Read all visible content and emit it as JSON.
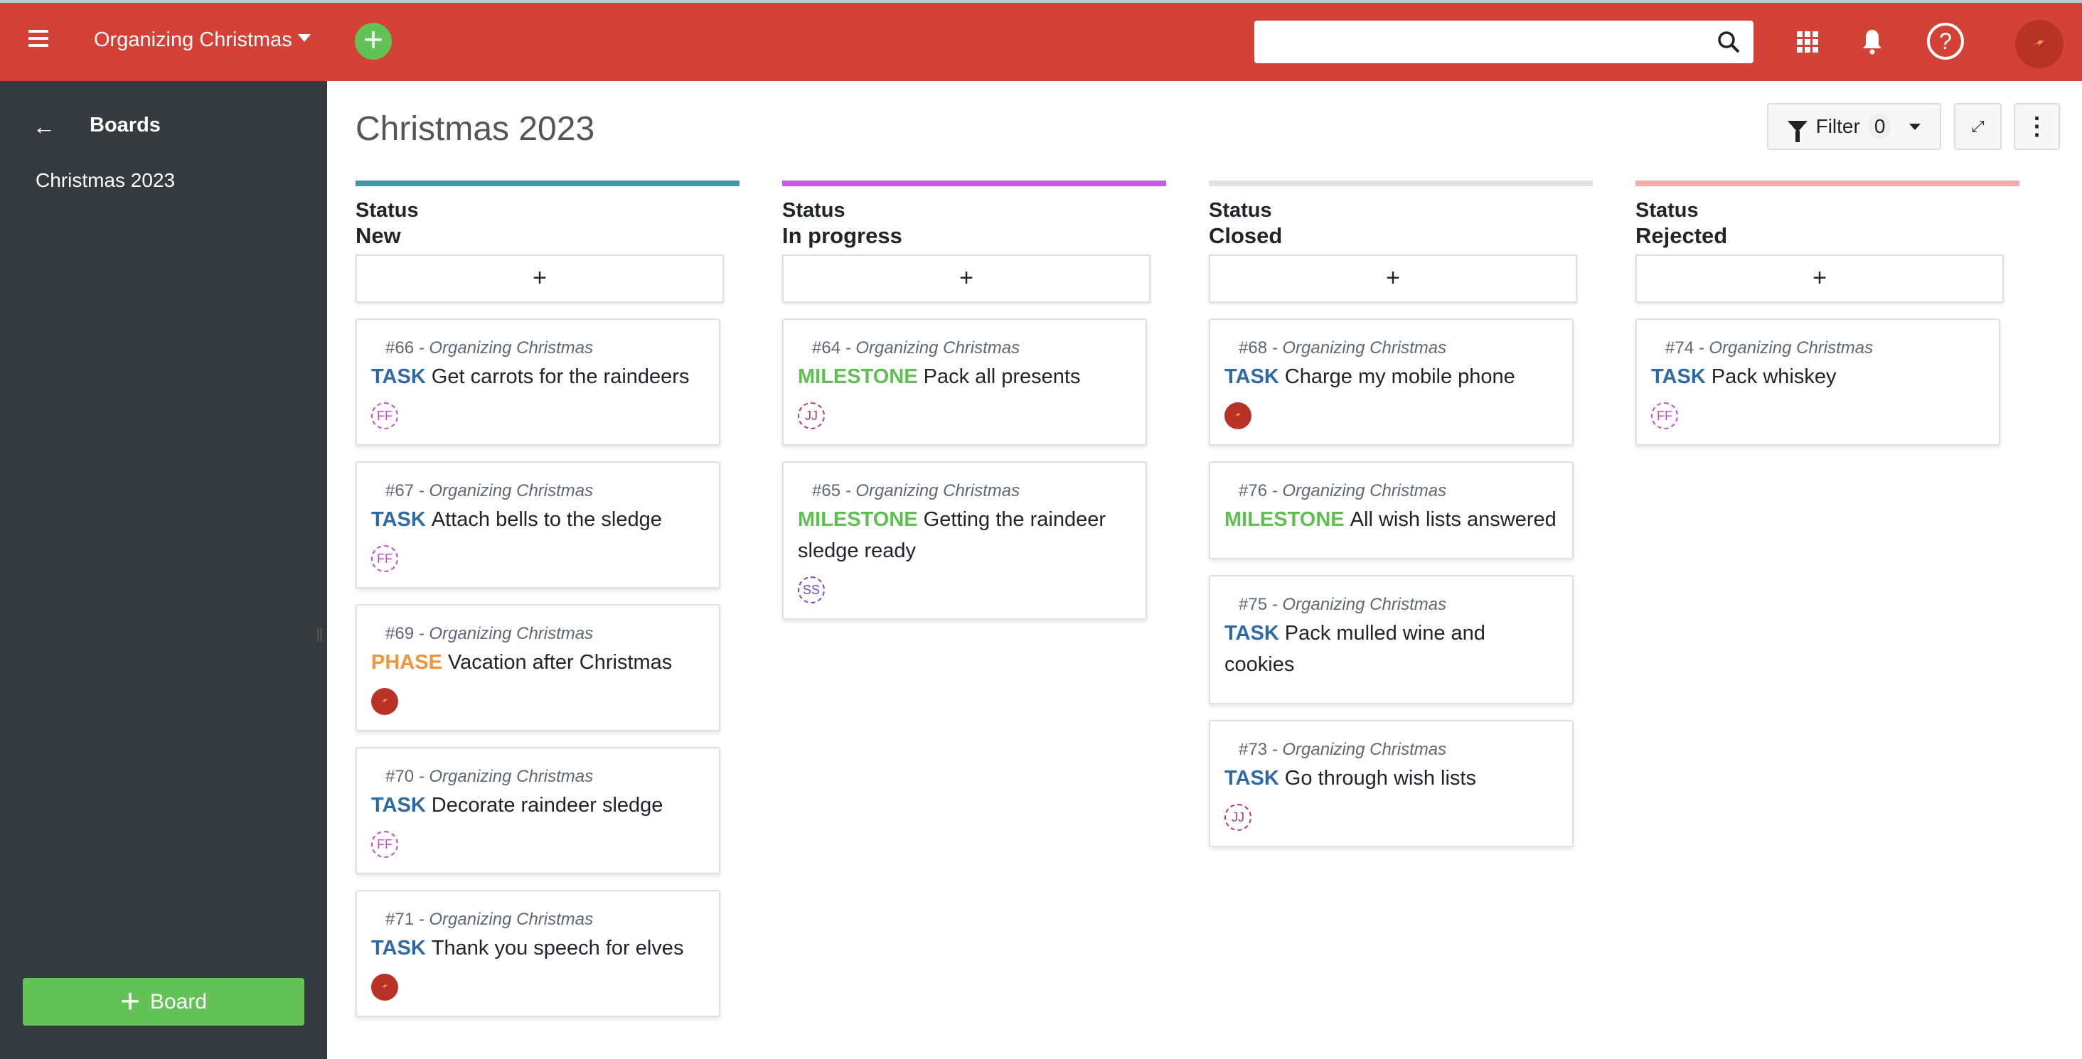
{
  "header": {
    "project": "Organizing Christmas",
    "search_placeholder": "",
    "user_avatar": "santa-sleigh"
  },
  "colors": {
    "header": "#d44137",
    "sidebar": "#343a3e",
    "accent_green": "#63c256",
    "TASK": "#2e6aa6",
    "MILESTONE": "#5fbf50",
    "PHASE": "#f0953a"
  },
  "sidebar": {
    "heading": "Boards",
    "items": [
      {
        "label": "Christmas 2023"
      }
    ],
    "add_board": "Board"
  },
  "main": {
    "title": "Christmas 2023",
    "filter_label": "Filter",
    "filter_count": "0",
    "add_card": "+"
  },
  "columns": [
    {
      "label": "Status",
      "name": "New",
      "color": "#4596a8",
      "cards": [
        {
          "id": "#66",
          "project": "- Organizing Christmas",
          "type": "TASK",
          "title": "Get carrots for the raindeers",
          "assignee": "FF",
          "assignee_color": "#c44cc8"
        },
        {
          "id": "#67",
          "project": "- Organizing Christmas",
          "type": "TASK",
          "title": "Attach bells to the sledge",
          "assignee": "FF",
          "assignee_color": "#c44cc8"
        },
        {
          "id": "#69",
          "project": "- Organizing Christmas",
          "type": "PHASE",
          "title": "Vacation after Christmas",
          "assignee": "",
          "assignee_image": "santa-sleigh"
        },
        {
          "id": "#70",
          "project": "- Organizing Christmas",
          "type": "TASK",
          "title": "Decorate raindeer sledge",
          "assignee": "FF",
          "assignee_color": "#c44cc8"
        },
        {
          "id": "#71",
          "project": "- Organizing Christmas",
          "type": "TASK",
          "title": "Thank you speech for elves",
          "assignee": "",
          "assignee_image": "santa-sleigh"
        }
      ]
    },
    {
      "label": "Status",
      "name": "In progress",
      "color": "#c15ee3",
      "cards": [
        {
          "id": "#64",
          "project": "- Organizing Christmas",
          "type": "MILESTONE",
          "title": "Pack all presents",
          "assignee": "JJ",
          "assignee_color": "#b83a5a"
        },
        {
          "id": "#65",
          "project": "- Organizing Christmas",
          "type": "MILESTONE",
          "title": "Getting the raindeer sledge ready",
          "assignee": "SS",
          "assignee_color": "#7a45c8"
        }
      ]
    },
    {
      "label": "Status",
      "name": "Closed",
      "color": "#dee2e6",
      "cards": [
        {
          "id": "#68",
          "project": "- Organizing Christmas",
          "type": "TASK",
          "title": "Charge my mobile phone",
          "assignee": "",
          "assignee_image": "santa-sleigh"
        },
        {
          "id": "#76",
          "project": "- Organizing Christmas",
          "type": "MILESTONE",
          "title": "All wish lists answered"
        },
        {
          "id": "#75",
          "project": "- Organizing Christmas",
          "type": "TASK",
          "title": "Pack mulled wine and cookies"
        },
        {
          "id": "#73",
          "project": "- Organizing Christmas",
          "type": "TASK",
          "title": "Go through wish lists",
          "assignee": "JJ",
          "assignee_color": "#b83a5a"
        }
      ]
    },
    {
      "label": "Status",
      "name": "Rejected",
      "color": "#f2aaaa",
      "cards": [
        {
          "id": "#74",
          "project": "- Organizing Christmas",
          "type": "TASK",
          "title": "Pack whiskey",
          "assignee": "FF",
          "assignee_color": "#c44cc8"
        }
      ]
    }
  ]
}
